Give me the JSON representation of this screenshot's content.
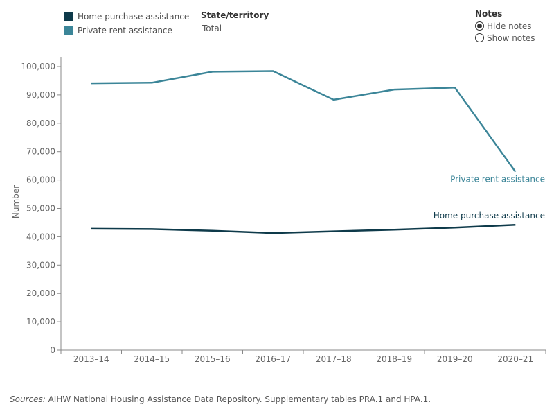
{
  "legend": {
    "items": [
      {
        "label": "Home purchase assistance",
        "color": "#0e3a4a"
      },
      {
        "label": "Private rent assistance",
        "color": "#3b8598"
      }
    ]
  },
  "filter": {
    "title": "State/territory",
    "value": "Total"
  },
  "notes": {
    "title": "Notes",
    "options": [
      {
        "label": "Hide notes",
        "selected": true
      },
      {
        "label": "Show notes",
        "selected": false
      }
    ]
  },
  "chart_data": {
    "type": "line",
    "ylabel": "Number",
    "ylim": [
      0,
      100000
    ],
    "yticks": [
      0,
      10000,
      20000,
      30000,
      40000,
      50000,
      60000,
      70000,
      80000,
      90000,
      100000
    ],
    "ytick_labels": [
      "0",
      "10,000",
      "20,000",
      "30,000",
      "40,000",
      "50,000",
      "60,000",
      "70,000",
      "80,000",
      "90,000",
      "100,000"
    ],
    "categories": [
      "2013–14",
      "2014–15",
      "2015–16",
      "2016–17",
      "2017–18",
      "2018–19",
      "2019–20",
      "2020–21"
    ],
    "series": [
      {
        "name": "Private rent assistance",
        "color": "#3b8598",
        "values": [
          94100,
          94300,
          98200,
          98400,
          88300,
          91900,
          92600,
          62900
        ],
        "end_label": "Private rent assistance"
      },
      {
        "name": "Home purchase assistance",
        "color": "#0e3a4a",
        "values": [
          42800,
          42700,
          42100,
          41300,
          41900,
          42500,
          43200,
          44200
        ],
        "end_label": "Home purchase assistance"
      }
    ]
  },
  "sources": {
    "label": "Sources:",
    "text": " AIHW National Housing Assistance Data Repository. Supplementary tables PRA.1 and HPA.1."
  }
}
